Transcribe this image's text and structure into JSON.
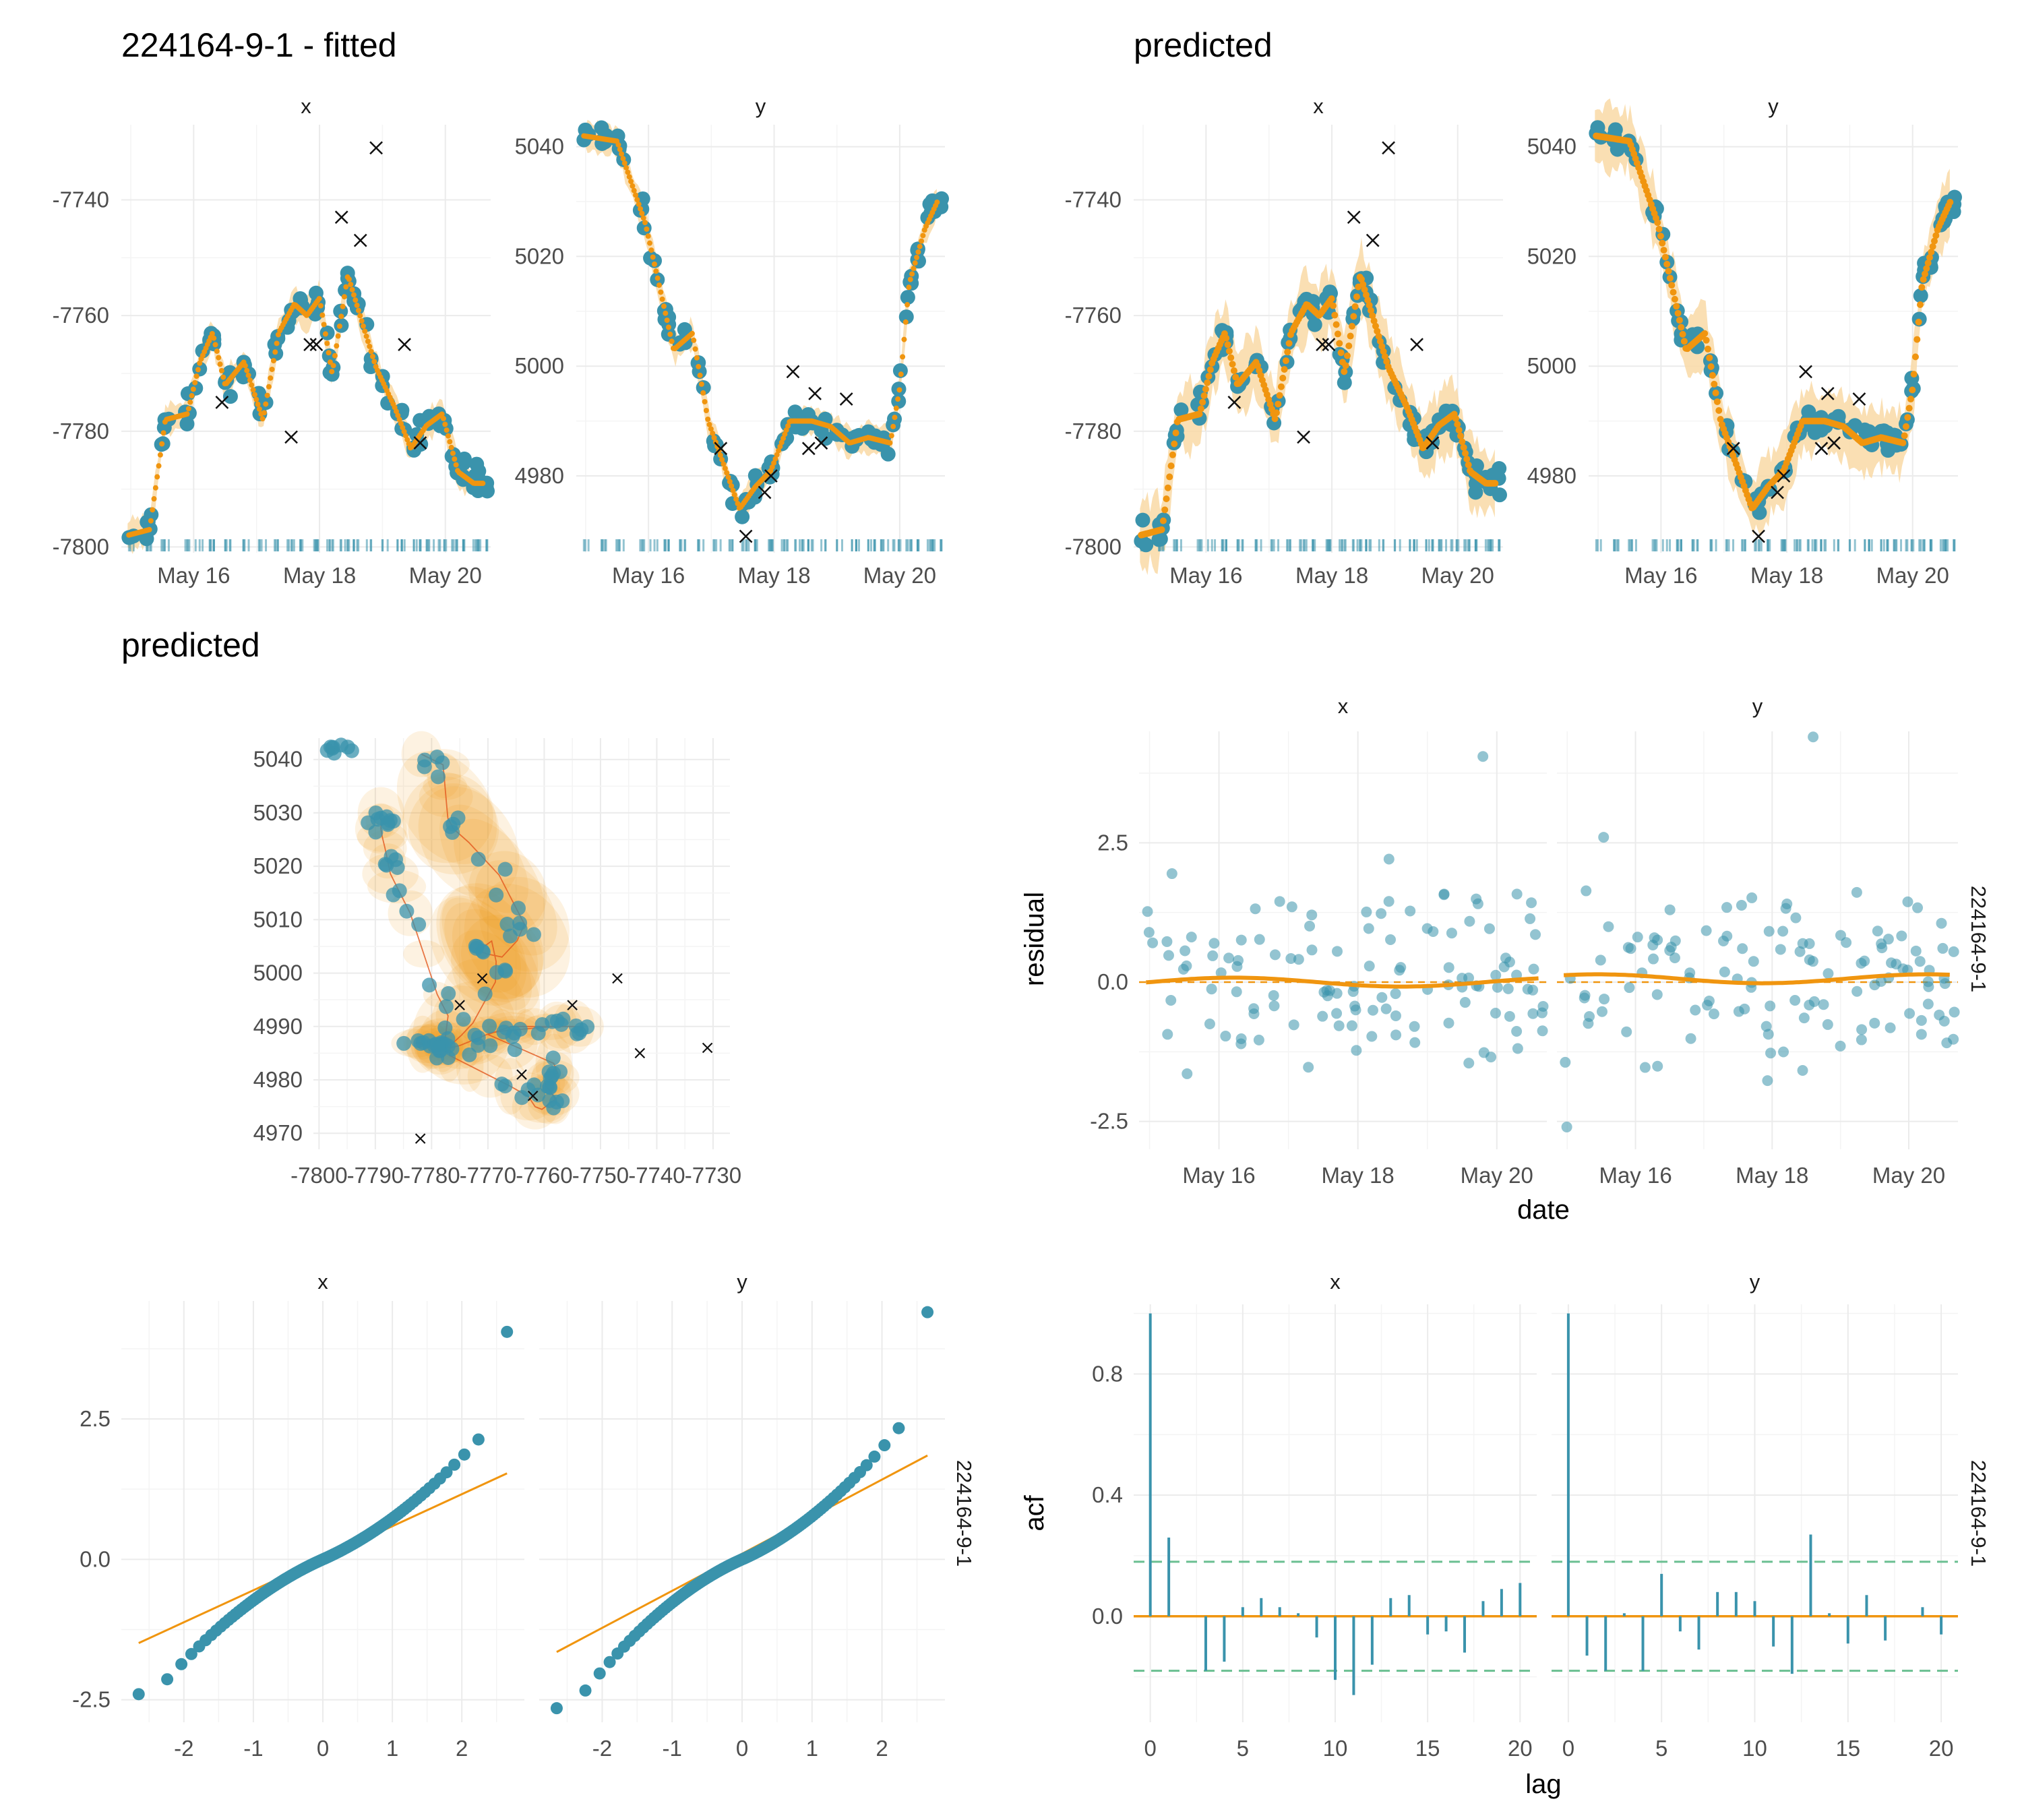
{
  "colors": {
    "point": "#3a93ac",
    "fit": "#f0950f",
    "fit_band": "#f9d9a6",
    "ellipse": "#f39c18",
    "outlier": "#111111",
    "ci_dash": "#6abf91",
    "grid": "#ebebeb",
    "tick_text": "#4d4d4d"
  },
  "titles": {
    "fitted": "224164-9-1 - fitted",
    "predicted_ts": "predicted",
    "predicted_map": "predicted"
  },
  "strips": {
    "x": "x",
    "y": "y",
    "id": "224164-9-1"
  },
  "axis_titles": {
    "date": "date",
    "residual": "residual",
    "lag": "lag",
    "acf": "acf"
  },
  "chart_data": [
    {
      "name": "fitted",
      "type": "scatter",
      "title": "224164-9-1 - fitted",
      "panels": [
        {
          "strip": "x",
          "x_tick_labels": [
            "May 16",
            "May 18",
            "May 20"
          ],
          "y_ticks": [
            -7800,
            -7780,
            -7760,
            -7740
          ],
          "ylim": [
            -7801,
            -7727
          ],
          "xlim_days": [
            14.85,
            20.72
          ]
        },
        {
          "strip": "y",
          "x_tick_labels": [
            "May 16",
            "May 18",
            "May 20"
          ],
          "y_ticks": [
            4980,
            5000,
            5020,
            5040
          ],
          "ylim": [
            4966,
            5044
          ],
          "xlim_days": [
            14.85,
            20.72
          ]
        }
      ],
      "series": [
        "observed locations (points)",
        "fitted track (line + band)",
        "outliers (x)"
      ]
    },
    {
      "name": "predicted time series",
      "type": "scatter",
      "title": "predicted",
      "panels": [
        {
          "strip": "x",
          "x_tick_labels": [
            "May 16",
            "May 18",
            "May 20"
          ],
          "y_ticks": [
            -7800,
            -7780,
            -7760,
            -7740
          ],
          "ylim": [
            -7801,
            -7727
          ]
        },
        {
          "strip": "y",
          "x_tick_labels": [
            "May 16",
            "May 18",
            "May 20"
          ],
          "y_ticks": [
            4980,
            5000,
            5020,
            5040
          ],
          "ylim": [
            4966,
            5044
          ]
        }
      ]
    },
    {
      "name": "predicted map",
      "type": "scatter",
      "title": "predicted",
      "x_tick_labels": [
        "-7800",
        "-7790",
        "-7780",
        "-7770",
        "-7760",
        "-7750",
        "-7740",
        "-7730"
      ],
      "y_tick_labels": [
        "4970",
        "4980",
        "4990",
        "5000",
        "5010",
        "5020",
        "5030",
        "5040"
      ],
      "xlim": [
        -7801,
        -7727
      ],
      "ylim": [
        4967,
        5044
      ],
      "outliers": [
        [
          -7775,
          4994
        ],
        [
          -7771,
          4999
        ],
        [
          -7755,
          4994
        ],
        [
          -7743,
          4985
        ],
        [
          -7747,
          4999
        ],
        [
          -7731,
          4986
        ],
        [
          -7764,
          4981
        ],
        [
          -7782,
          4969
        ],
        [
          -7762,
          4977
        ]
      ]
    },
    {
      "name": "residuals",
      "type": "scatter",
      "xlabel": "date",
      "ylabel": "residual",
      "strip_right": "224164-9-1",
      "panels": [
        {
          "strip": "x",
          "x_tick_labels": [
            "May 16",
            "May 18",
            "May 20"
          ],
          "ylim": [
            -3,
            4.5
          ],
          "max_point": [
            19.8,
            4.05
          ]
        },
        {
          "strip": "y",
          "x_tick_labels": [
            "May 16",
            "May 18",
            "May 20"
          ],
          "ylim": [
            -3,
            4.5
          ],
          "max_point": [
            18.6,
            4.4
          ]
        }
      ],
      "y_tick_labels": [
        "-2.5",
        "0.0",
        "2.5"
      ]
    },
    {
      "name": "qq",
      "type": "scatter",
      "strip_right": "224164-9-1",
      "x_tick_labels": [
        "-2",
        "-1",
        "0",
        "1",
        "2"
      ],
      "y_tick_labels": [
        "-2.5",
        "0.0",
        "2.5"
      ],
      "panels": [
        {
          "strip": "x",
          "line": {
            "intercept": 0.02,
            "slope": 0.57
          },
          "top_point": [
            2.65,
            4.05
          ],
          "bottom_point": [
            -2.65,
            -2.4
          ]
        },
        {
          "strip": "y",
          "line": {
            "intercept": 0.1,
            "slope": 0.66
          },
          "top_point": [
            2.65,
            4.4
          ],
          "bottom_point": [
            -2.65,
            -2.65
          ]
        }
      ]
    },
    {
      "name": "acf",
      "type": "bar",
      "xlabel": "lag",
      "ylabel": "acf",
      "strip_right": "224164-9-1",
      "x_tick_labels": [
        "0",
        "5",
        "10",
        "15",
        "20"
      ],
      "y_tick_labels": [
        "0.0",
        "0.4",
        "0.8"
      ],
      "ci": 0.18,
      "panels": [
        {
          "strip": "x",
          "lags": [
            0,
            1,
            2,
            3,
            4,
            5,
            6,
            7,
            8,
            9,
            10,
            11,
            12,
            13,
            14,
            15,
            16,
            17,
            18,
            19,
            20
          ],
          "values": [
            1.0,
            0.26,
            0.0,
            -0.18,
            -0.15,
            0.03,
            0.06,
            0.03,
            0.01,
            -0.07,
            -0.21,
            -0.26,
            -0.16,
            0.06,
            0.07,
            -0.06,
            -0.05,
            -0.12,
            0.05,
            0.09,
            0.11
          ]
        },
        {
          "strip": "y",
          "lags": [
            0,
            1,
            2,
            3,
            4,
            5,
            6,
            7,
            8,
            9,
            10,
            11,
            12,
            13,
            14,
            15,
            16,
            17,
            18,
            19,
            20
          ],
          "values": [
            1.0,
            -0.13,
            -0.18,
            0.01,
            -0.18,
            0.14,
            -0.05,
            -0.11,
            0.08,
            0.08,
            0.05,
            -0.1,
            -0.19,
            0.27,
            0.01,
            -0.09,
            0.07,
            -0.08,
            0.0,
            0.03,
            -0.06
          ]
        }
      ]
    }
  ]
}
